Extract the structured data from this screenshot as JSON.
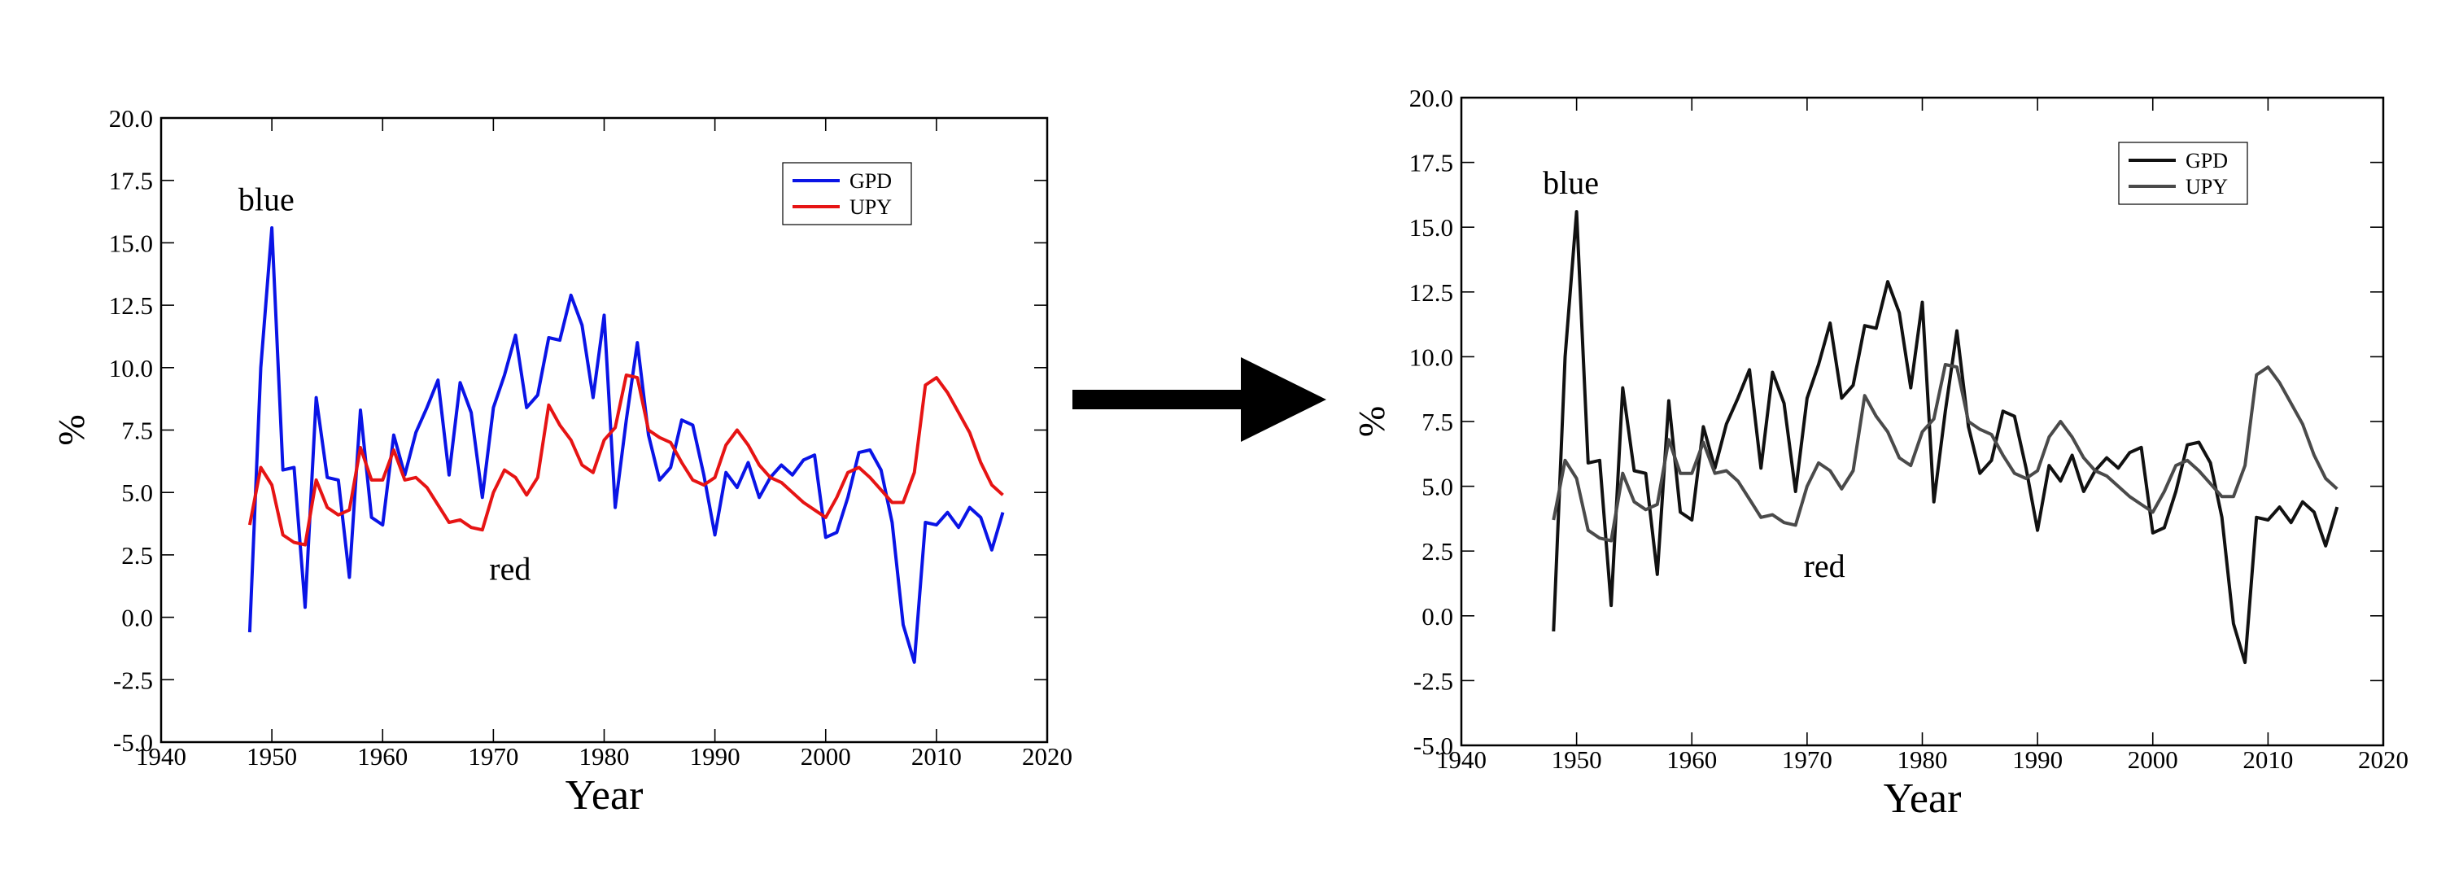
{
  "colors": {
    "left_gpd": "#0a14e6",
    "left_upy": "#e61414",
    "right_gpd": "#111111",
    "right_upy": "#4a4a4a",
    "arrow": "#000000"
  },
  "chart_data": [
    {
      "type": "line",
      "xlabel": "Year",
      "ylabel": "%",
      "xlim": [
        1940,
        2020
      ],
      "ylim": [
        -5.0,
        20.0
      ],
      "xticks": [
        "1940",
        "1950",
        "1960",
        "1970",
        "1980",
        "1990",
        "2000",
        "2010",
        "2020"
      ],
      "yticks": [
        "-5.0",
        "-2.5",
        "0.0",
        "2.5",
        "5.0",
        "7.5",
        "10.0",
        "12.5",
        "15.0",
        "17.5",
        "20.0"
      ],
      "legend_position": "top-right",
      "annotations": [
        {
          "text": "blue",
          "x": 1949.5,
          "y": 16.3
        },
        {
          "text": "red",
          "x": 1971.5,
          "y": 1.5
        }
      ],
      "x": [
        1948,
        1949,
        1950,
        1951,
        1952,
        1953,
        1954,
        1955,
        1956,
        1957,
        1958,
        1959,
        1960,
        1961,
        1962,
        1963,
        1964,
        1965,
        1966,
        1967,
        1968,
        1969,
        1970,
        1971,
        1972,
        1973,
        1974,
        1975,
        1976,
        1977,
        1978,
        1979,
        1980,
        1981,
        1982,
        1983,
        1984,
        1985,
        1986,
        1987,
        1988,
        1989,
        1990,
        1991,
        1992,
        1993,
        1994,
        1995,
        1996,
        1997,
        1998,
        1999,
        2000,
        2001,
        2002,
        2003,
        2004,
        2005,
        2006,
        2007,
        2008,
        2009,
        2010,
        2011,
        2012,
        2013,
        2014,
        2015,
        2016
      ],
      "series": [
        {
          "name": "GPD",
          "values": [
            -0.6,
            10.0,
            15.6,
            5.9,
            6.0,
            0.4,
            8.8,
            5.6,
            5.5,
            1.6,
            8.3,
            4.0,
            3.7,
            7.3,
            5.7,
            7.4,
            8.4,
            9.5,
            5.7,
            9.4,
            8.2,
            4.8,
            8.4,
            9.7,
            11.3,
            8.4,
            8.9,
            11.2,
            11.1,
            12.9,
            11.7,
            8.8,
            12.1,
            4.4,
            7.9,
            11.0,
            7.3,
            5.5,
            6.0,
            7.9,
            7.7,
            5.7,
            3.3,
            5.8,
            5.2,
            6.2,
            4.8,
            5.6,
            6.1,
            5.7,
            6.3,
            6.5,
            3.2,
            3.4,
            4.8,
            6.6,
            6.7,
            5.9,
            3.8,
            -0.3,
            -1.8,
            3.8,
            3.7,
            4.2,
            3.6,
            4.4,
            4.0,
            2.7,
            4.2
          ]
        },
        {
          "name": "UPY",
          "values": [
            3.7,
            6.0,
            5.3,
            3.3,
            3.0,
            2.9,
            5.5,
            4.4,
            4.1,
            4.3,
            6.8,
            5.5,
            5.5,
            6.7,
            5.5,
            5.6,
            5.2,
            4.5,
            3.8,
            3.9,
            3.6,
            3.5,
            5.0,
            5.9,
            5.6,
            4.9,
            5.6,
            8.5,
            7.7,
            7.1,
            6.1,
            5.8,
            7.1,
            7.6,
            9.7,
            9.6,
            7.5,
            7.2,
            7.0,
            6.2,
            5.5,
            5.3,
            5.6,
            6.9,
            7.5,
            6.9,
            6.1,
            5.6,
            5.4,
            5.0,
            4.6,
            4.3,
            4.0,
            4.8,
            5.8,
            6.0,
            5.6,
            5.1,
            4.6,
            4.6,
            5.8,
            9.3,
            9.6,
            9.0,
            8.2,
            7.4,
            6.2,
            5.3,
            4.9
          ]
        }
      ]
    },
    {
      "type": "line",
      "xlabel": "Year",
      "ylabel": "%",
      "xlim": [
        1940,
        2020
      ],
      "ylim": [
        -5.0,
        20.0
      ],
      "xticks": [
        "1940",
        "1950",
        "1960",
        "1970",
        "1980",
        "1990",
        "2000",
        "2010",
        "2020"
      ],
      "yticks": [
        "-5.0",
        "-2.5",
        "0.0",
        "2.5",
        "5.0",
        "7.5",
        "10.0",
        "12.5",
        "15.0",
        "17.5",
        "20.0"
      ],
      "legend_position": "top-right",
      "annotations": [
        {
          "text": "blue",
          "x": 1949.5,
          "y": 16.3
        },
        {
          "text": "red",
          "x": 1971.5,
          "y": 1.5
        }
      ],
      "x": [
        1948,
        1949,
        1950,
        1951,
        1952,
        1953,
        1954,
        1955,
        1956,
        1957,
        1958,
        1959,
        1960,
        1961,
        1962,
        1963,
        1964,
        1965,
        1966,
        1967,
        1968,
        1969,
        1970,
        1971,
        1972,
        1973,
        1974,
        1975,
        1976,
        1977,
        1978,
        1979,
        1980,
        1981,
        1982,
        1983,
        1984,
        1985,
        1986,
        1987,
        1988,
        1989,
        1990,
        1991,
        1992,
        1993,
        1994,
        1995,
        1996,
        1997,
        1998,
        1999,
        2000,
        2001,
        2002,
        2003,
        2004,
        2005,
        2006,
        2007,
        2008,
        2009,
        2010,
        2011,
        2012,
        2013,
        2014,
        2015,
        2016
      ],
      "series": [
        {
          "name": "GPD",
          "values": [
            -0.6,
            10.0,
            15.6,
            5.9,
            6.0,
            0.4,
            8.8,
            5.6,
            5.5,
            1.6,
            8.3,
            4.0,
            3.7,
            7.3,
            5.7,
            7.4,
            8.4,
            9.5,
            5.7,
            9.4,
            8.2,
            4.8,
            8.4,
            9.7,
            11.3,
            8.4,
            8.9,
            11.2,
            11.1,
            12.9,
            11.7,
            8.8,
            12.1,
            4.4,
            7.9,
            11.0,
            7.3,
            5.5,
            6.0,
            7.9,
            7.7,
            5.7,
            3.3,
            5.8,
            5.2,
            6.2,
            4.8,
            5.6,
            6.1,
            5.7,
            6.3,
            6.5,
            3.2,
            3.4,
            4.8,
            6.6,
            6.7,
            5.9,
            3.8,
            -0.3,
            -1.8,
            3.8,
            3.7,
            4.2,
            3.6,
            4.4,
            4.0,
            2.7,
            4.2
          ]
        },
        {
          "name": "UPY",
          "values": [
            3.7,
            6.0,
            5.3,
            3.3,
            3.0,
            2.9,
            5.5,
            4.4,
            4.1,
            4.3,
            6.8,
            5.5,
            5.5,
            6.7,
            5.5,
            5.6,
            5.2,
            4.5,
            3.8,
            3.9,
            3.6,
            3.5,
            5.0,
            5.9,
            5.6,
            4.9,
            5.6,
            8.5,
            7.7,
            7.1,
            6.1,
            5.8,
            7.1,
            7.6,
            9.7,
            9.6,
            7.5,
            7.2,
            7.0,
            6.2,
            5.5,
            5.3,
            5.6,
            6.9,
            7.5,
            6.9,
            6.1,
            5.6,
            5.4,
            5.0,
            4.6,
            4.3,
            4.0,
            4.8,
            5.8,
            6.0,
            5.6,
            5.1,
            4.6,
            4.6,
            5.8,
            9.3,
            9.6,
            9.0,
            8.2,
            7.4,
            6.2,
            5.3,
            4.9
          ]
        }
      ]
    }
  ]
}
